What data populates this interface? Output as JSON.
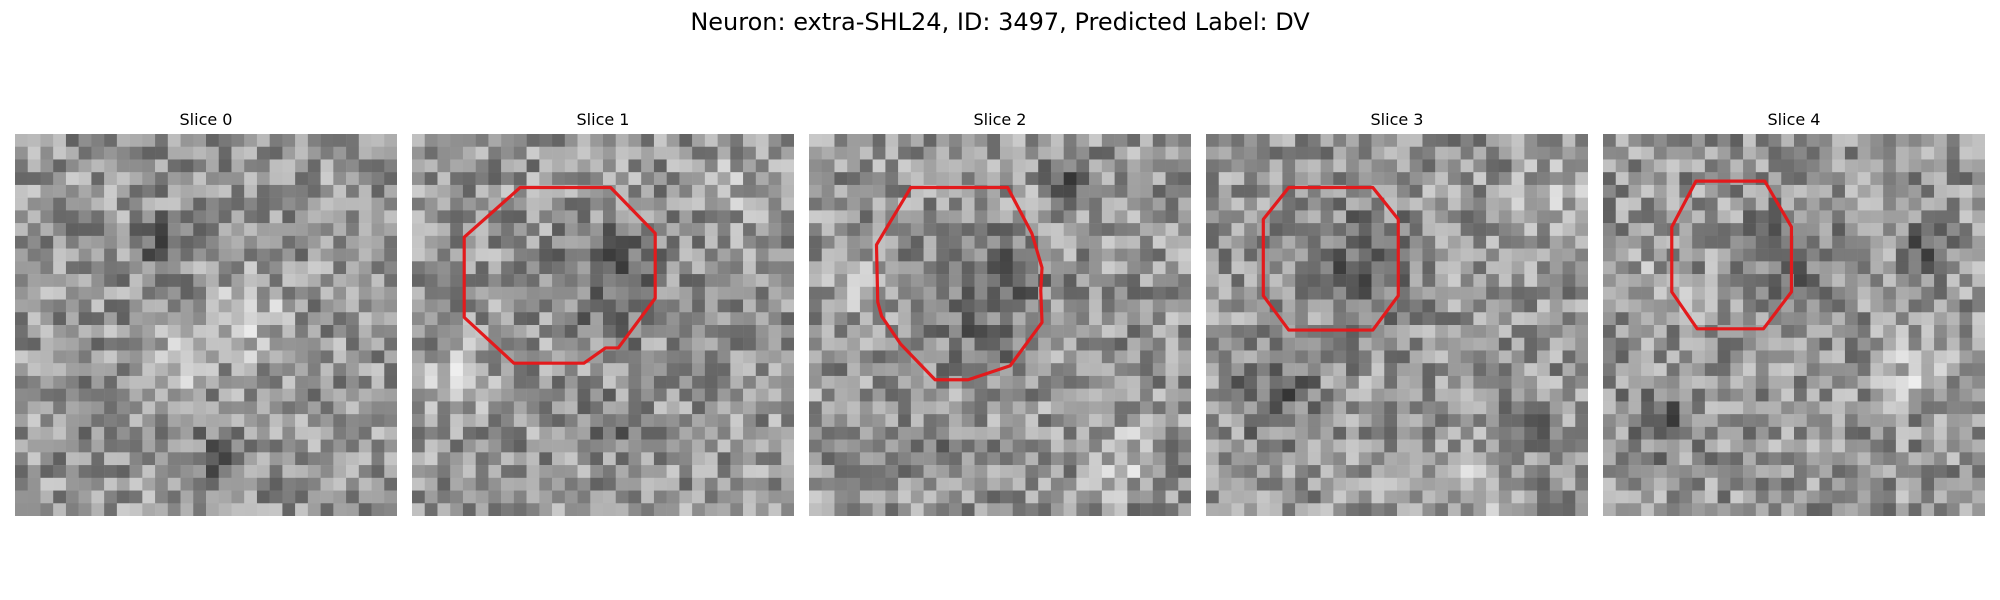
{
  "figure": {
    "title": "Neuron: extra-SHL24, ID: 3497, Predicted Label: DV"
  },
  "panels": [
    {
      "title": "Slice 0",
      "has_outline": false
    },
    {
      "title": "Slice 1",
      "has_outline": true
    },
    {
      "title": "Slice 2",
      "has_outline": true
    },
    {
      "title": "Slice 3",
      "has_outline": true
    },
    {
      "title": "Slice 4",
      "has_outline": true
    }
  ],
  "colors": {
    "outline": "#e31a1c",
    "background": "#ffffff"
  },
  "image_style": "grayscale noisy microscopy patch, 30x30 pixel grid"
}
